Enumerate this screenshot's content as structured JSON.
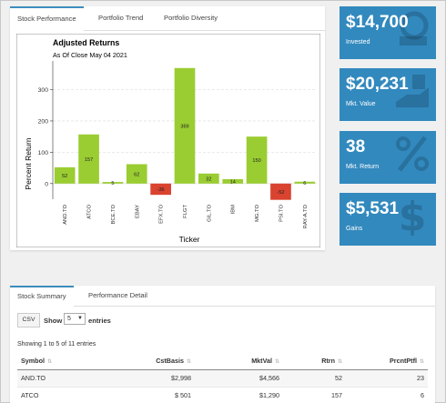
{
  "top_tabs": [
    "Stock Performance",
    "Portfolio Trend",
    "Portfolio Diversity"
  ],
  "value_boxes": [
    {
      "value": "$14,700",
      "label": "Invested",
      "icon": "bank-icon"
    },
    {
      "value": "$20,231",
      "label": "Mkt. Value",
      "icon": "money-hand-icon"
    },
    {
      "value": "38",
      "label": "Mkt. Return",
      "icon": "percent-icon"
    },
    {
      "value": "$5,531",
      "label": "Gains",
      "icon": "dollar-icon"
    }
  ],
  "colors": {
    "accent": "#3c8dbc",
    "value_box": "#3289be",
    "positive": "#9acd32",
    "negative": "#d9432f"
  },
  "chart_data": {
    "type": "bar",
    "title": "Adjusted Returns",
    "subtitle": "As Of Close May 04 2021",
    "xlabel": "Ticker",
    "ylabel": "Percent Return",
    "categories": [
      "AND.TO",
      "ATCO",
      "BCE.TO",
      "EBAY",
      "EFX.TO",
      "FLGT",
      "GIL.TO",
      "IBM",
      "MG.TO",
      "PSI.TO",
      "RAY-A.TO"
    ],
    "values": [
      52,
      157,
      5,
      62,
      -36,
      369,
      32,
      14,
      150,
      -52,
      6
    ],
    "ylim": [
      -50,
      380
    ],
    "yticks": [
      0,
      100,
      200,
      300
    ],
    "grid": true,
    "legend": "none"
  },
  "bottom_tabs": [
    "Stock Summary",
    "Performance Detail"
  ],
  "table_controls": {
    "csv": "CSV",
    "show": "Show",
    "length": "5",
    "entries": "entries",
    "info": "Showing 1 to 5 of 11 entries"
  },
  "table": {
    "columns": [
      "Symbol",
      "CstBasis",
      "MktVal",
      "Rtrn",
      "PrcntPtfl"
    ],
    "rows": [
      [
        "AND.TO",
        "$2,998",
        "$4,566",
        "52",
        "23"
      ],
      [
        "ATCO",
        "$ 501",
        "$1,290",
        "157",
        "6"
      ]
    ]
  }
}
